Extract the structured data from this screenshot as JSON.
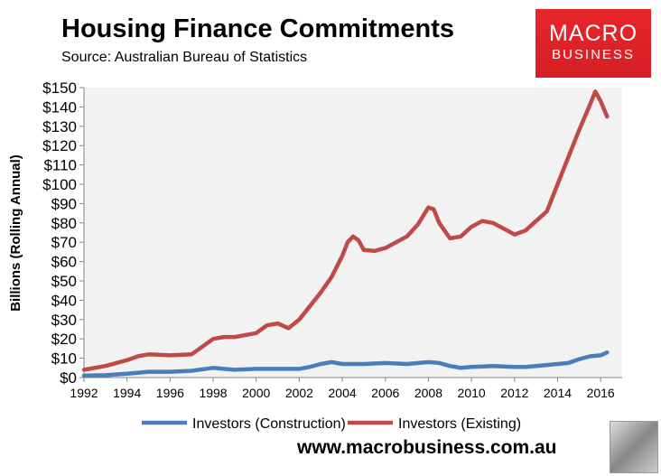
{
  "chart_data": {
    "type": "line",
    "title": "Housing Finance Commitments",
    "subtitle": "Source: Australian Bureau of Statistics",
    "xlabel": "",
    "ylabel": "Billions (Rolling Annual)",
    "xlim": [
      1992,
      2017
    ],
    "ylim": [
      0,
      150
    ],
    "grid": false,
    "legend_position": "bottom",
    "x_ticks": [
      "1992",
      "1994",
      "1996",
      "1998",
      "2000",
      "2002",
      "2004",
      "2006",
      "2008",
      "2010",
      "2012",
      "2014",
      "2016"
    ],
    "y_ticks": [
      "$0",
      "$10",
      "$20",
      "$30",
      "$40",
      "$50",
      "$60",
      "$70",
      "$80",
      "$90",
      "$100",
      "$110",
      "$120",
      "$130",
      "$140",
      "$150"
    ],
    "series": [
      {
        "name": "Investors (Construction)",
        "color": "#4a7ebb",
        "x": [
          1992,
          1993,
          1994,
          1995,
          1996,
          1997,
          1998,
          1999,
          2000,
          2001,
          2002,
          2002.5,
          2003,
          2003.5,
          2004,
          2005,
          2006,
          2007,
          2008,
          2008.5,
          2009,
          2009.5,
          2010,
          2011,
          2012,
          2012.5,
          2013,
          2014,
          2014.5,
          2015,
          2015.5,
          2016,
          2016.3
        ],
        "values": [
          1,
          1.2,
          2,
          3,
          3,
          3.5,
          5,
          4,
          4.5,
          4.5,
          4.5,
          5.5,
          7,
          8,
          7,
          7,
          7.5,
          7,
          8,
          7.5,
          6,
          5,
          5.5,
          6,
          5.5,
          5.5,
          6,
          7,
          7.5,
          9.5,
          11,
          11.5,
          13
        ]
      },
      {
        "name": "Investors (Existing)",
        "color": "#be4b48",
        "x": [
          1992,
          1993,
          1994,
          1994.5,
          1995,
          1996,
          1997,
          1997.5,
          1998,
          1998.5,
          1999,
          2000,
          2000.5,
          2001,
          2001.5,
          2002,
          2002.5,
          2003,
          2003.5,
          2004,
          2004.25,
          2004.5,
          2004.75,
          2005,
          2005.5,
          2006,
          2006.5,
          2007,
          2007.5,
          2008,
          2008.25,
          2008.5,
          2009,
          2009.5,
          2010,
          2010.5,
          2011,
          2011.5,
          2012,
          2012.5,
          2013,
          2013.5,
          2014,
          2014.5,
          2015,
          2015.5,
          2015.75,
          2016,
          2016.3
        ],
        "values": [
          4,
          6,
          9,
          11,
          12,
          11.5,
          12,
          16,
          20,
          21,
          21,
          23,
          27,
          28,
          25.5,
          30,
          37,
          44,
          52,
          63,
          70,
          73,
          71,
          66,
          65.5,
          67,
          70,
          73,
          79,
          88,
          87,
          80,
          72,
          73,
          78,
          81,
          80,
          77,
          74,
          76,
          81,
          86,
          100,
          114,
          128,
          141,
          148,
          143,
          135
        ]
      }
    ]
  },
  "logo": {
    "line1": "MACRO",
    "line2": "BUSINESS"
  },
  "footer": {
    "url": "www.macrobusiness.com.au"
  }
}
